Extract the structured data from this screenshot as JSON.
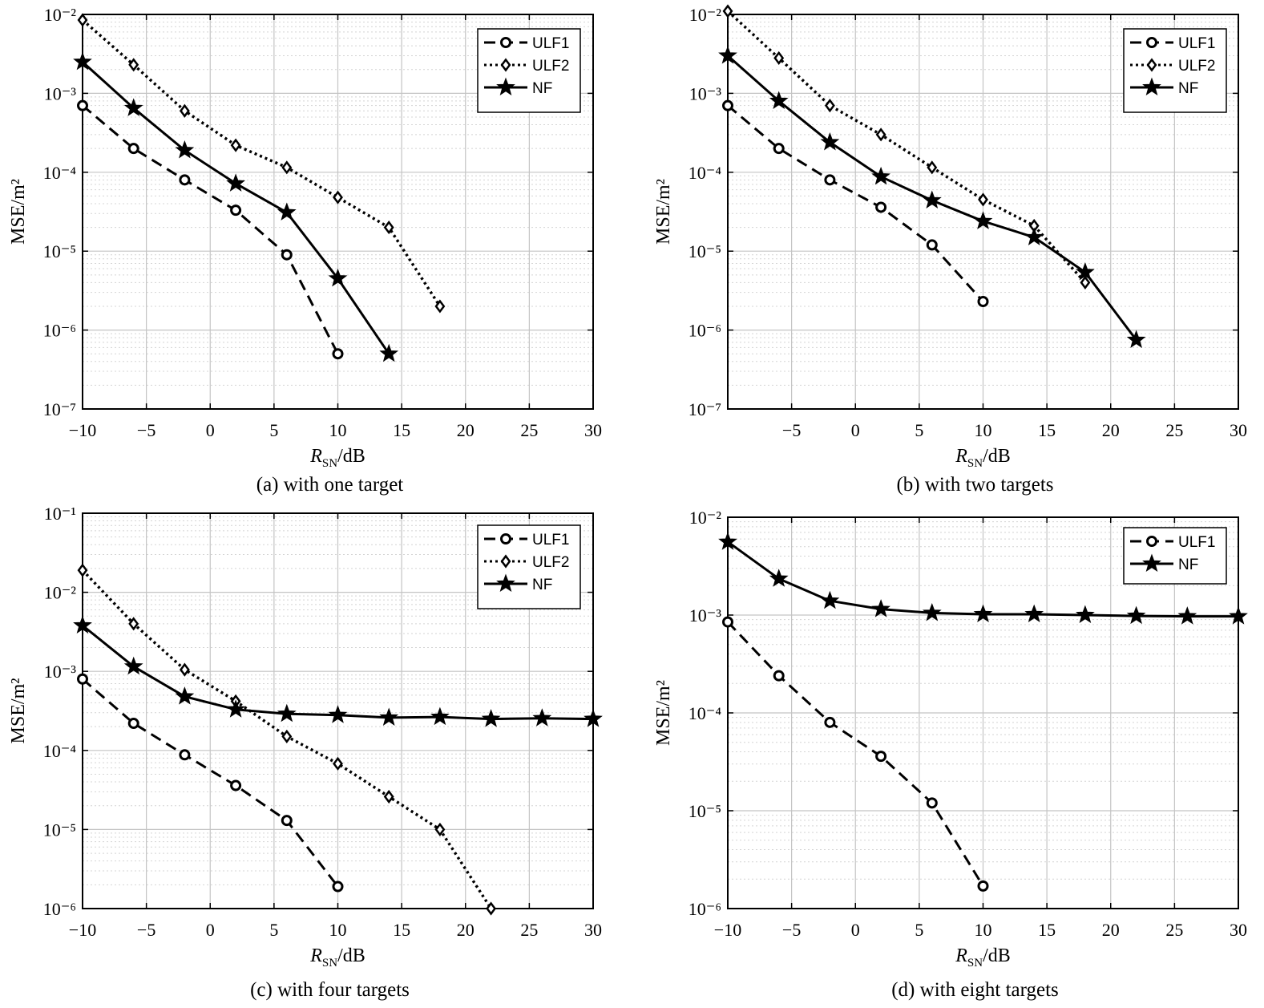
{
  "chart_data": [
    {
      "type": "line",
      "caption": "(a) with one target",
      "xlabel": "R_SN/dB",
      "ylabel": "MSE/m²",
      "yscale": "log",
      "xlim": [
        -10,
        30
      ],
      "ylim_exp": [
        -7,
        -2
      ],
      "xticks": [
        -10,
        -5,
        0,
        5,
        10,
        15,
        20,
        25,
        30
      ],
      "xtick_labels": [
        "−10",
        "−5",
        "0",
        "5",
        "10",
        "15",
        "20",
        "25",
        "30"
      ],
      "grid": true,
      "legend_position": "top-right",
      "series": [
        {
          "name": "ULF1",
          "style": "dashed",
          "marker": "circle",
          "x": [
            -10,
            -6,
            -2,
            2,
            6,
            10
          ],
          "y": [
            0.0007,
            0.0002,
            8e-05,
            3.3e-05,
            9e-06,
            5e-07
          ]
        },
        {
          "name": "ULF2",
          "style": "dotted",
          "marker": "diamond",
          "x": [
            -10,
            -6,
            -2,
            2,
            6,
            10,
            14,
            18
          ],
          "y": [
            0.0085,
            0.0023,
            0.0006,
            0.00022,
            0.000115,
            4.8e-05,
            2e-05,
            2e-06
          ]
        },
        {
          "name": "NF",
          "style": "solid",
          "marker": "star",
          "x": [
            -10,
            -6,
            -2,
            2,
            6,
            10,
            14
          ],
          "y": [
            0.0025,
            0.00065,
            0.00019,
            7.2e-05,
            3.1e-05,
            4.5e-06,
            5e-07
          ]
        }
      ]
    },
    {
      "type": "line",
      "caption": "(b) with two targets",
      "xlabel": "R_SN/dB",
      "ylabel": "MSE/m²",
      "yscale": "log",
      "xlim": [
        -10,
        30
      ],
      "ylim_exp": [
        -7,
        -2
      ],
      "xticks": [
        -5,
        0,
        5,
        10,
        15,
        20,
        25,
        30
      ],
      "xtick_labels": [
        "−5",
        "0",
        "5",
        "10",
        "15",
        "20",
        "25",
        "30"
      ],
      "grid": true,
      "legend_position": "top-right",
      "series": [
        {
          "name": "ULF1",
          "style": "dashed",
          "marker": "circle",
          "x": [
            -10,
            -6,
            -2,
            2,
            6,
            10
          ],
          "y": [
            0.0007,
            0.0002,
            8e-05,
            3.6e-05,
            1.2e-05,
            2.3e-06
          ]
        },
        {
          "name": "ULF2",
          "style": "dotted",
          "marker": "diamond",
          "x": [
            -10,
            -6,
            -2,
            2,
            6,
            10,
            14,
            18
          ],
          "y": [
            0.011,
            0.0028,
            0.0007,
            0.0003,
            0.000115,
            4.5e-05,
            2.1e-05,
            4e-06
          ]
        },
        {
          "name": "NF",
          "style": "solid",
          "marker": "star",
          "x": [
            -10,
            -6,
            -2,
            2,
            6,
            10,
            14,
            18,
            22
          ],
          "y": [
            0.003,
            0.0008,
            0.00024,
            8.8e-05,
            4.4e-05,
            2.4e-05,
            1.5e-05,
            5.4e-06,
            7.5e-07
          ]
        }
      ]
    },
    {
      "type": "line",
      "caption": "(c) with four targets",
      "xlabel": "R_SN/dB",
      "ylabel": "MSE/m²",
      "yscale": "log",
      "xlim": [
        -10,
        30
      ],
      "ylim_exp": [
        -6,
        -1
      ],
      "xticks": [
        -10,
        -5,
        0,
        5,
        10,
        15,
        20,
        25,
        30
      ],
      "xtick_labels": [
        "−10",
        "−5",
        "0",
        "5",
        "10",
        "15",
        "20",
        "25",
        "30"
      ],
      "grid": true,
      "legend_position": "top-right",
      "series": [
        {
          "name": "ULF1",
          "style": "dashed",
          "marker": "circle",
          "x": [
            -10,
            -6,
            -2,
            2,
            6,
            10
          ],
          "y": [
            0.0008,
            0.00022,
            8.8e-05,
            3.6e-05,
            1.3e-05,
            1.9e-06
          ]
        },
        {
          "name": "ULF2",
          "style": "dotted",
          "marker": "diamond",
          "x": [
            -10,
            -6,
            -2,
            2,
            6,
            10,
            14,
            18,
            22
          ],
          "y": [
            0.019,
            0.004,
            0.00105,
            0.00042,
            0.00015,
            6.8e-05,
            2.6e-05,
            1e-05,
            1e-06
          ]
        },
        {
          "name": "NF",
          "style": "solid",
          "marker": "star",
          "x": [
            -10,
            -6,
            -2,
            2,
            6,
            10,
            14,
            18,
            22,
            26,
            30
          ],
          "y": [
            0.0038,
            0.00115,
            0.00048,
            0.00033,
            0.00029,
            0.00028,
            0.00026,
            0.000265,
            0.00025,
            0.000255,
            0.00025
          ]
        }
      ]
    },
    {
      "type": "line",
      "caption": "(d) with eight targets",
      "xlabel": "R_SN/dB",
      "ylabel": "MSE/m²",
      "yscale": "log",
      "xlim": [
        -10,
        30
      ],
      "ylim_exp": [
        -6,
        -2
      ],
      "xticks": [
        -10,
        -5,
        0,
        5,
        10,
        15,
        20,
        25,
        30
      ],
      "xtick_labels": [
        "−10",
        "−5",
        "0",
        "5",
        "10",
        "15",
        "20",
        "25",
        "30"
      ],
      "grid": true,
      "legend_position": "top-right",
      "series": [
        {
          "name": "ULF1",
          "style": "dashed",
          "marker": "circle",
          "x": [
            -10,
            -6,
            -2,
            2,
            6,
            10
          ],
          "y": [
            0.00085,
            0.00024,
            8e-05,
            3.6e-05,
            1.2e-05,
            1.7e-06
          ]
        },
        {
          "name": "NF",
          "style": "solid",
          "marker": "star",
          "x": [
            -10,
            -6,
            -2,
            2,
            6,
            10,
            14,
            18,
            22,
            26,
            30
          ],
          "y": [
            0.0056,
            0.00235,
            0.0014,
            0.00115,
            0.00105,
            0.00102,
            0.00102,
            0.001,
            0.00098,
            0.00097,
            0.00097
          ]
        }
      ]
    }
  ]
}
